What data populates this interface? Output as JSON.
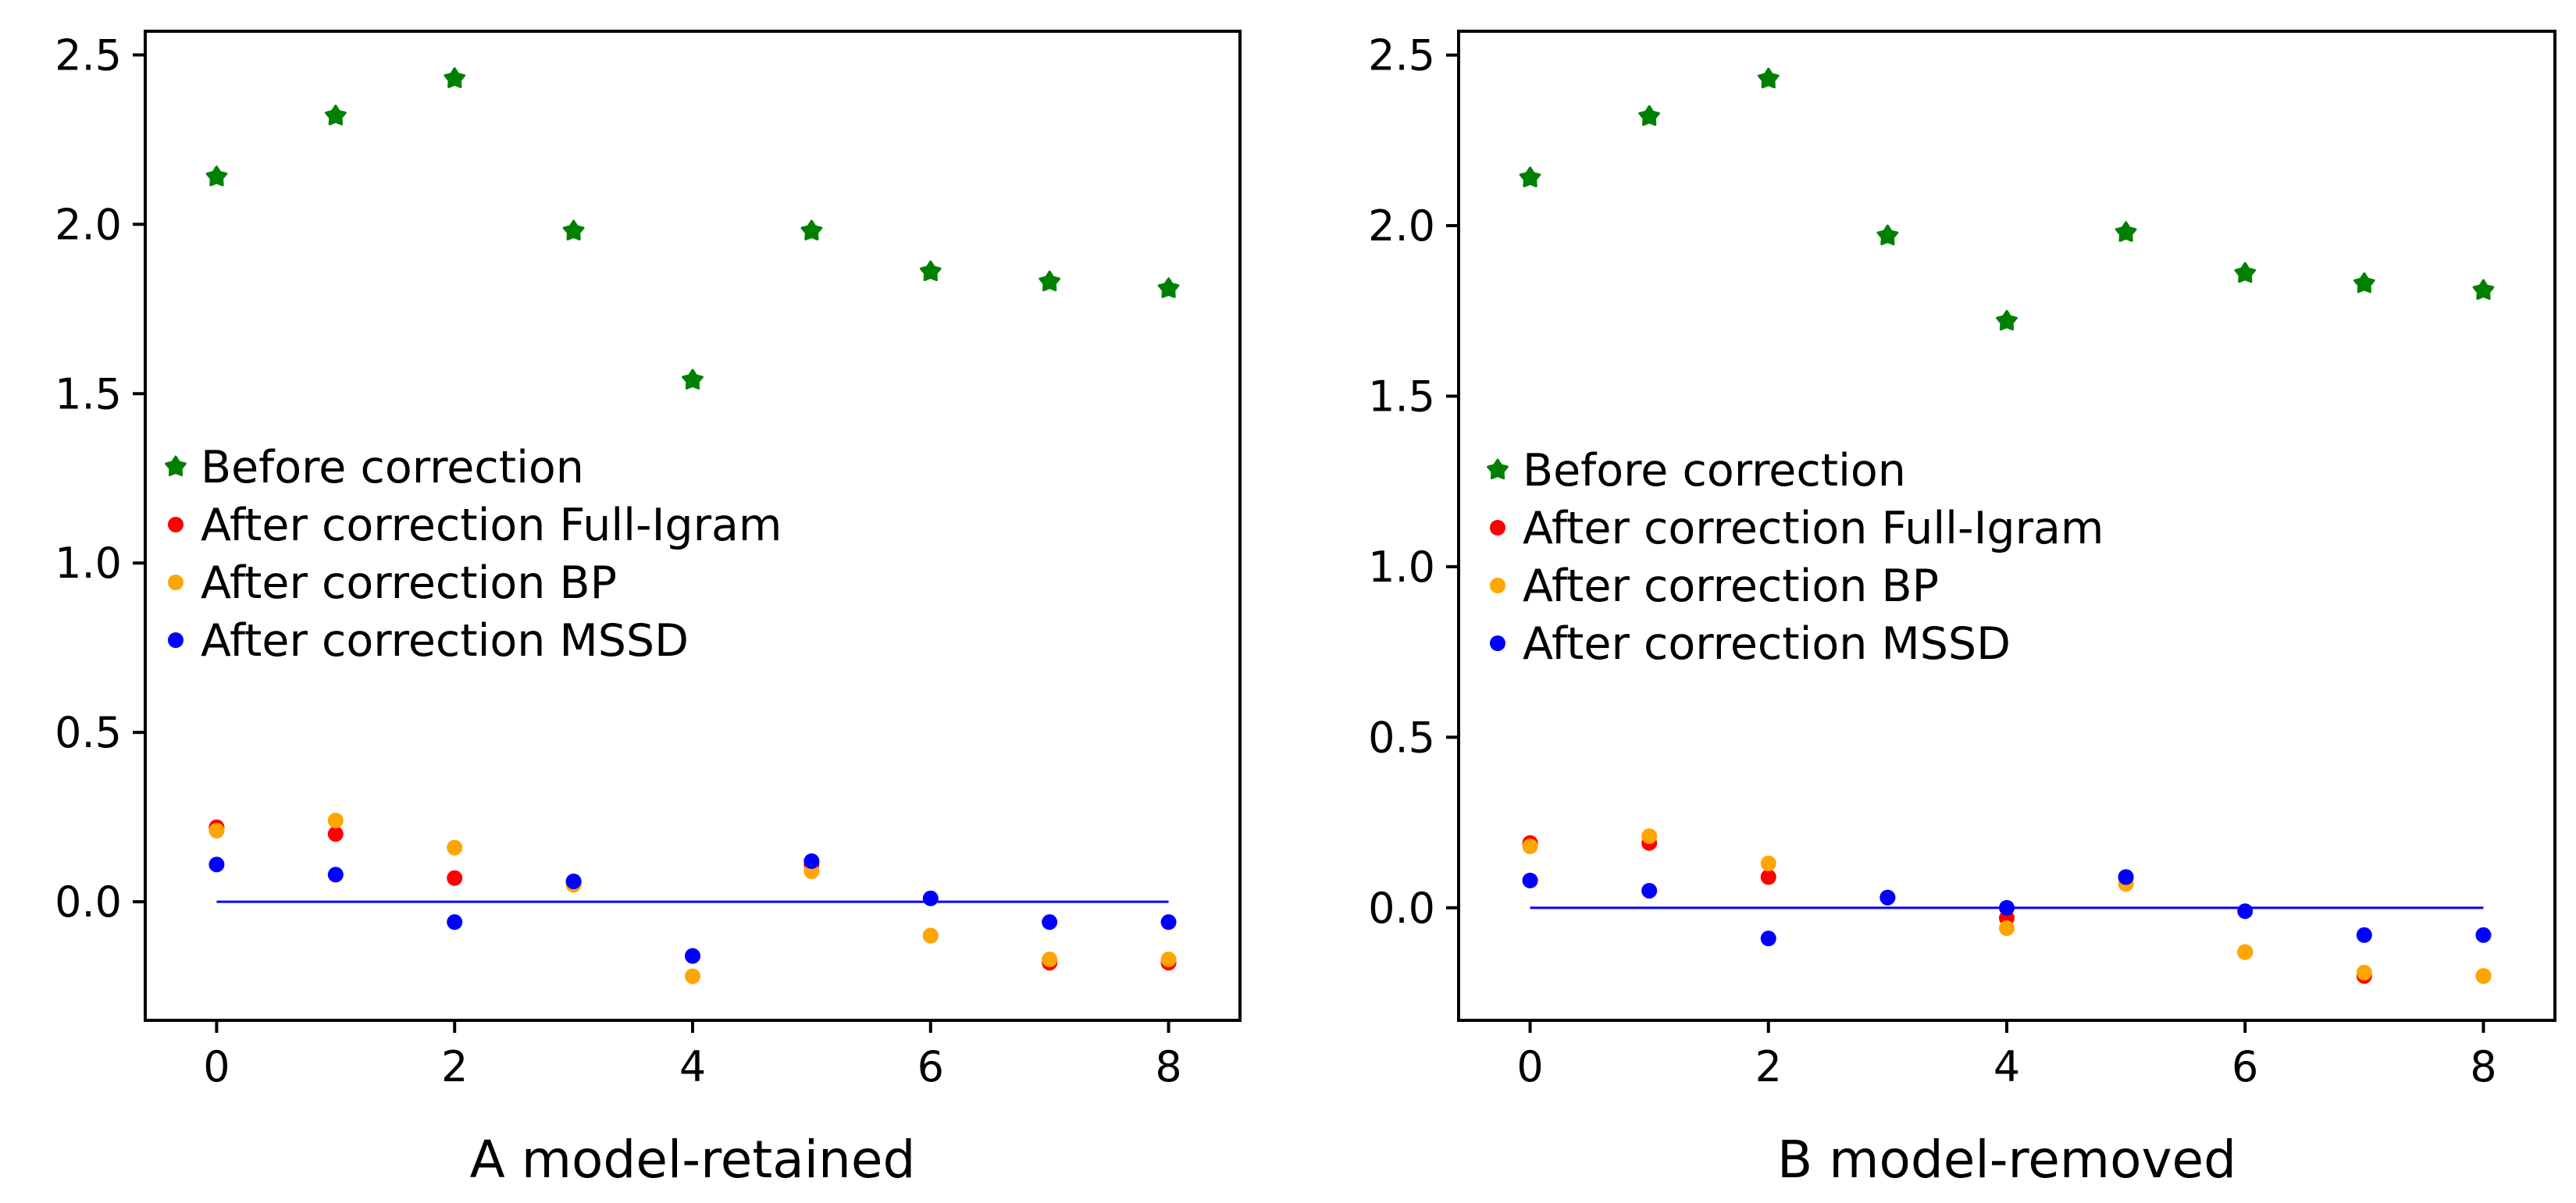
{
  "chart_data": [
    {
      "type": "scatter",
      "xlabel": "A model-retained",
      "ylabel": "",
      "xlim": [
        -0.6,
        8.6
      ],
      "ylim": [
        -0.35,
        2.57
      ],
      "xticks": [
        0,
        2,
        4,
        6,
        8
      ],
      "yticks": [
        0.0,
        0.5,
        1.0,
        1.5,
        2.0,
        2.5
      ],
      "ytick_labels": [
        "0.0",
        "0.5",
        "1.0",
        "1.5",
        "2.0",
        "2.5"
      ],
      "legend_position": "center-left",
      "reference_line": {
        "y": 0,
        "x_range": [
          0,
          8
        ],
        "color": "#0000ff"
      },
      "x": [
        0,
        1,
        2,
        3,
        4,
        5,
        6,
        7,
        8
      ],
      "series": [
        {
          "name": "Before correction",
          "marker": "star",
          "color": "#008000",
          "values": [
            2.14,
            2.32,
            2.43,
            1.98,
            1.54,
            1.98,
            1.86,
            1.83,
            1.81
          ]
        },
        {
          "name": "After correction Full-Igram",
          "marker": "dot",
          "color": "#ff0000",
          "values": [
            0.22,
            0.2,
            0.07,
            0.06,
            -0.16,
            0.11,
            -0.1,
            -0.18,
            -0.18
          ]
        },
        {
          "name": "After correction BP",
          "marker": "dot",
          "color": "#ffa500",
          "values": [
            0.21,
            0.24,
            0.16,
            0.05,
            -0.22,
            0.09,
            -0.1,
            -0.17,
            -0.17
          ]
        },
        {
          "name": "After correction MSSD",
          "marker": "dot",
          "color": "#0000ff",
          "values": [
            0.11,
            0.08,
            -0.06,
            0.06,
            -0.16,
            0.12,
            0.01,
            -0.06,
            -0.06
          ]
        }
      ]
    },
    {
      "type": "scatter",
      "xlabel": "B model-removed",
      "ylabel": "",
      "xlim": [
        -0.6,
        8.6
      ],
      "ylim": [
        -0.33,
        2.57
      ],
      "xticks": [
        0,
        2,
        4,
        6,
        8
      ],
      "yticks": [
        0.0,
        0.5,
        1.0,
        1.5,
        2.0,
        2.5
      ],
      "ytick_labels": [
        "0.0",
        "0.5",
        "1.0",
        "1.5",
        "2.0",
        "2.5"
      ],
      "legend_position": "center-left",
      "reference_line": {
        "y": 0,
        "x_range": [
          0,
          8
        ],
        "color": "#0000ff"
      },
      "x": [
        0,
        1,
        2,
        3,
        4,
        5,
        6,
        7,
        8
      ],
      "series": [
        {
          "name": "Before correction",
          "marker": "star",
          "color": "#008000",
          "values": [
            2.14,
            2.32,
            2.43,
            1.97,
            1.72,
            1.98,
            1.86,
            1.83,
            1.81
          ]
        },
        {
          "name": "After correction Full-Igram",
          "marker": "dot",
          "color": "#ff0000",
          "values": [
            0.19,
            0.19,
            0.09,
            0.03,
            -0.03,
            0.09,
            -0.13,
            -0.2,
            -0.2
          ]
        },
        {
          "name": "After correction BP",
          "marker": "dot",
          "color": "#ffa500",
          "values": [
            0.18,
            0.21,
            0.13,
            0.03,
            -0.06,
            0.07,
            -0.13,
            -0.19,
            -0.2
          ]
        },
        {
          "name": "After correction MSSD",
          "marker": "dot",
          "color": "#0000ff",
          "values": [
            0.08,
            0.05,
            -0.09,
            0.03,
            0.0,
            0.09,
            -0.01,
            -0.08,
            -0.08
          ]
        }
      ]
    }
  ]
}
